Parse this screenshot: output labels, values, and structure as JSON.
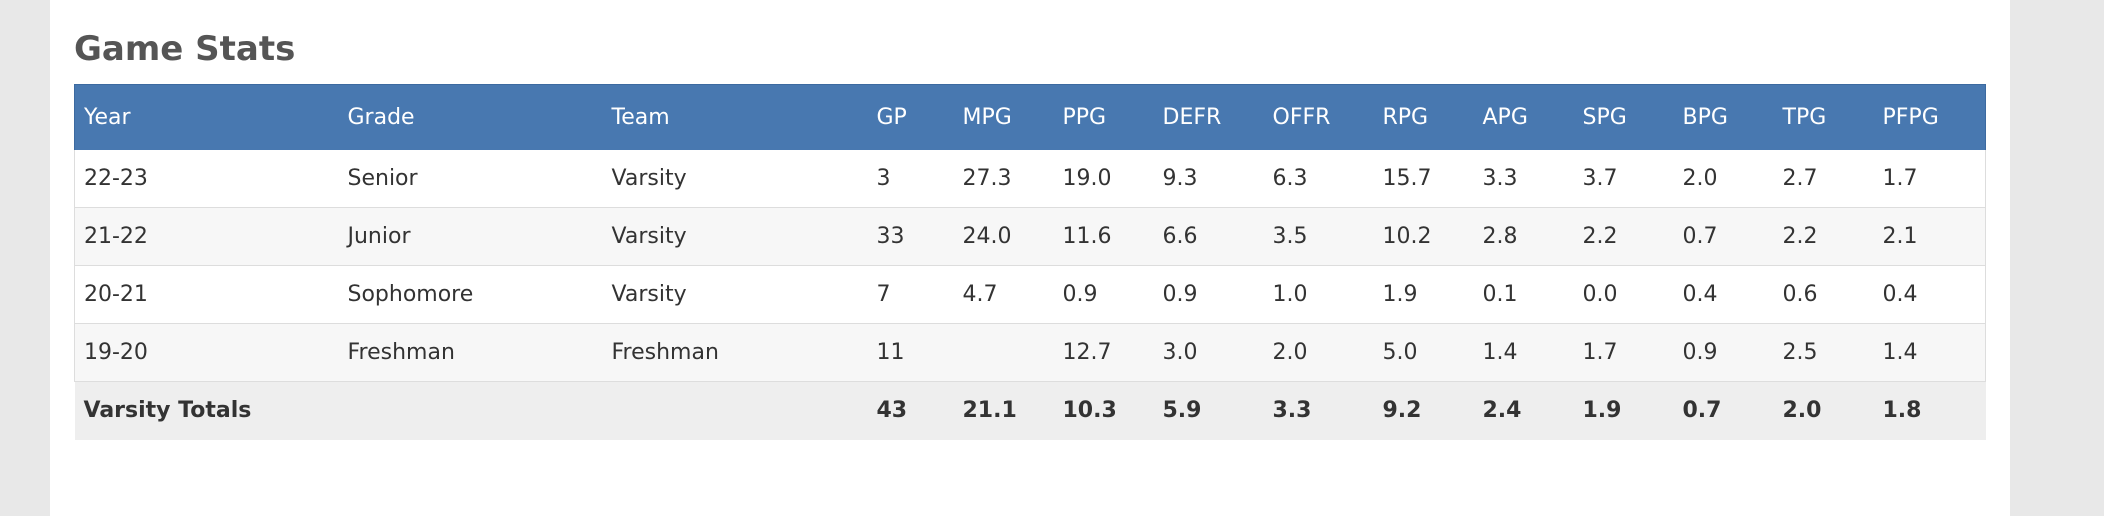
{
  "section": {
    "title": "Game Stats"
  },
  "colors": {
    "header_bg": "#4878b0",
    "header_text": "#ffffff",
    "row_alt_bg": "#f7f7f7",
    "totals_bg": "#eeeeee",
    "title_text": "#555555"
  },
  "table": {
    "headers": [
      "Year",
      "Grade",
      "Team",
      "GP",
      "MPG",
      "PPG",
      "DEFR",
      "OFFR",
      "RPG",
      "APG",
      "SPG",
      "BPG",
      "TPG",
      "PFPG"
    ],
    "rows": [
      [
        "22-23",
        "Senior",
        "Varsity",
        "3",
        "27.3",
        "19.0",
        "9.3",
        "6.3",
        "15.7",
        "3.3",
        "3.7",
        "2.0",
        "2.7",
        "1.7"
      ],
      [
        "21-22",
        "Junior",
        "Varsity",
        "33",
        "24.0",
        "11.6",
        "6.6",
        "3.5",
        "10.2",
        "2.8",
        "2.2",
        "0.7",
        "2.2",
        "2.1"
      ],
      [
        "20-21",
        "Sophomore",
        "Varsity",
        "7",
        "4.7",
        "0.9",
        "0.9",
        "1.0",
        "1.9",
        "0.1",
        "0.0",
        "0.4",
        "0.6",
        "0.4"
      ],
      [
        "19-20",
        "Freshman",
        "Freshman",
        "11",
        "",
        "12.7",
        "3.0",
        "2.0",
        "5.0",
        "1.4",
        "1.7",
        "0.9",
        "2.5",
        "1.4"
      ]
    ],
    "totals": [
      "Varsity Totals",
      "",
      "",
      "43",
      "21.1",
      "10.3",
      "5.9",
      "3.3",
      "9.2",
      "2.4",
      "1.9",
      "0.7",
      "2.0",
      "1.8"
    ]
  }
}
